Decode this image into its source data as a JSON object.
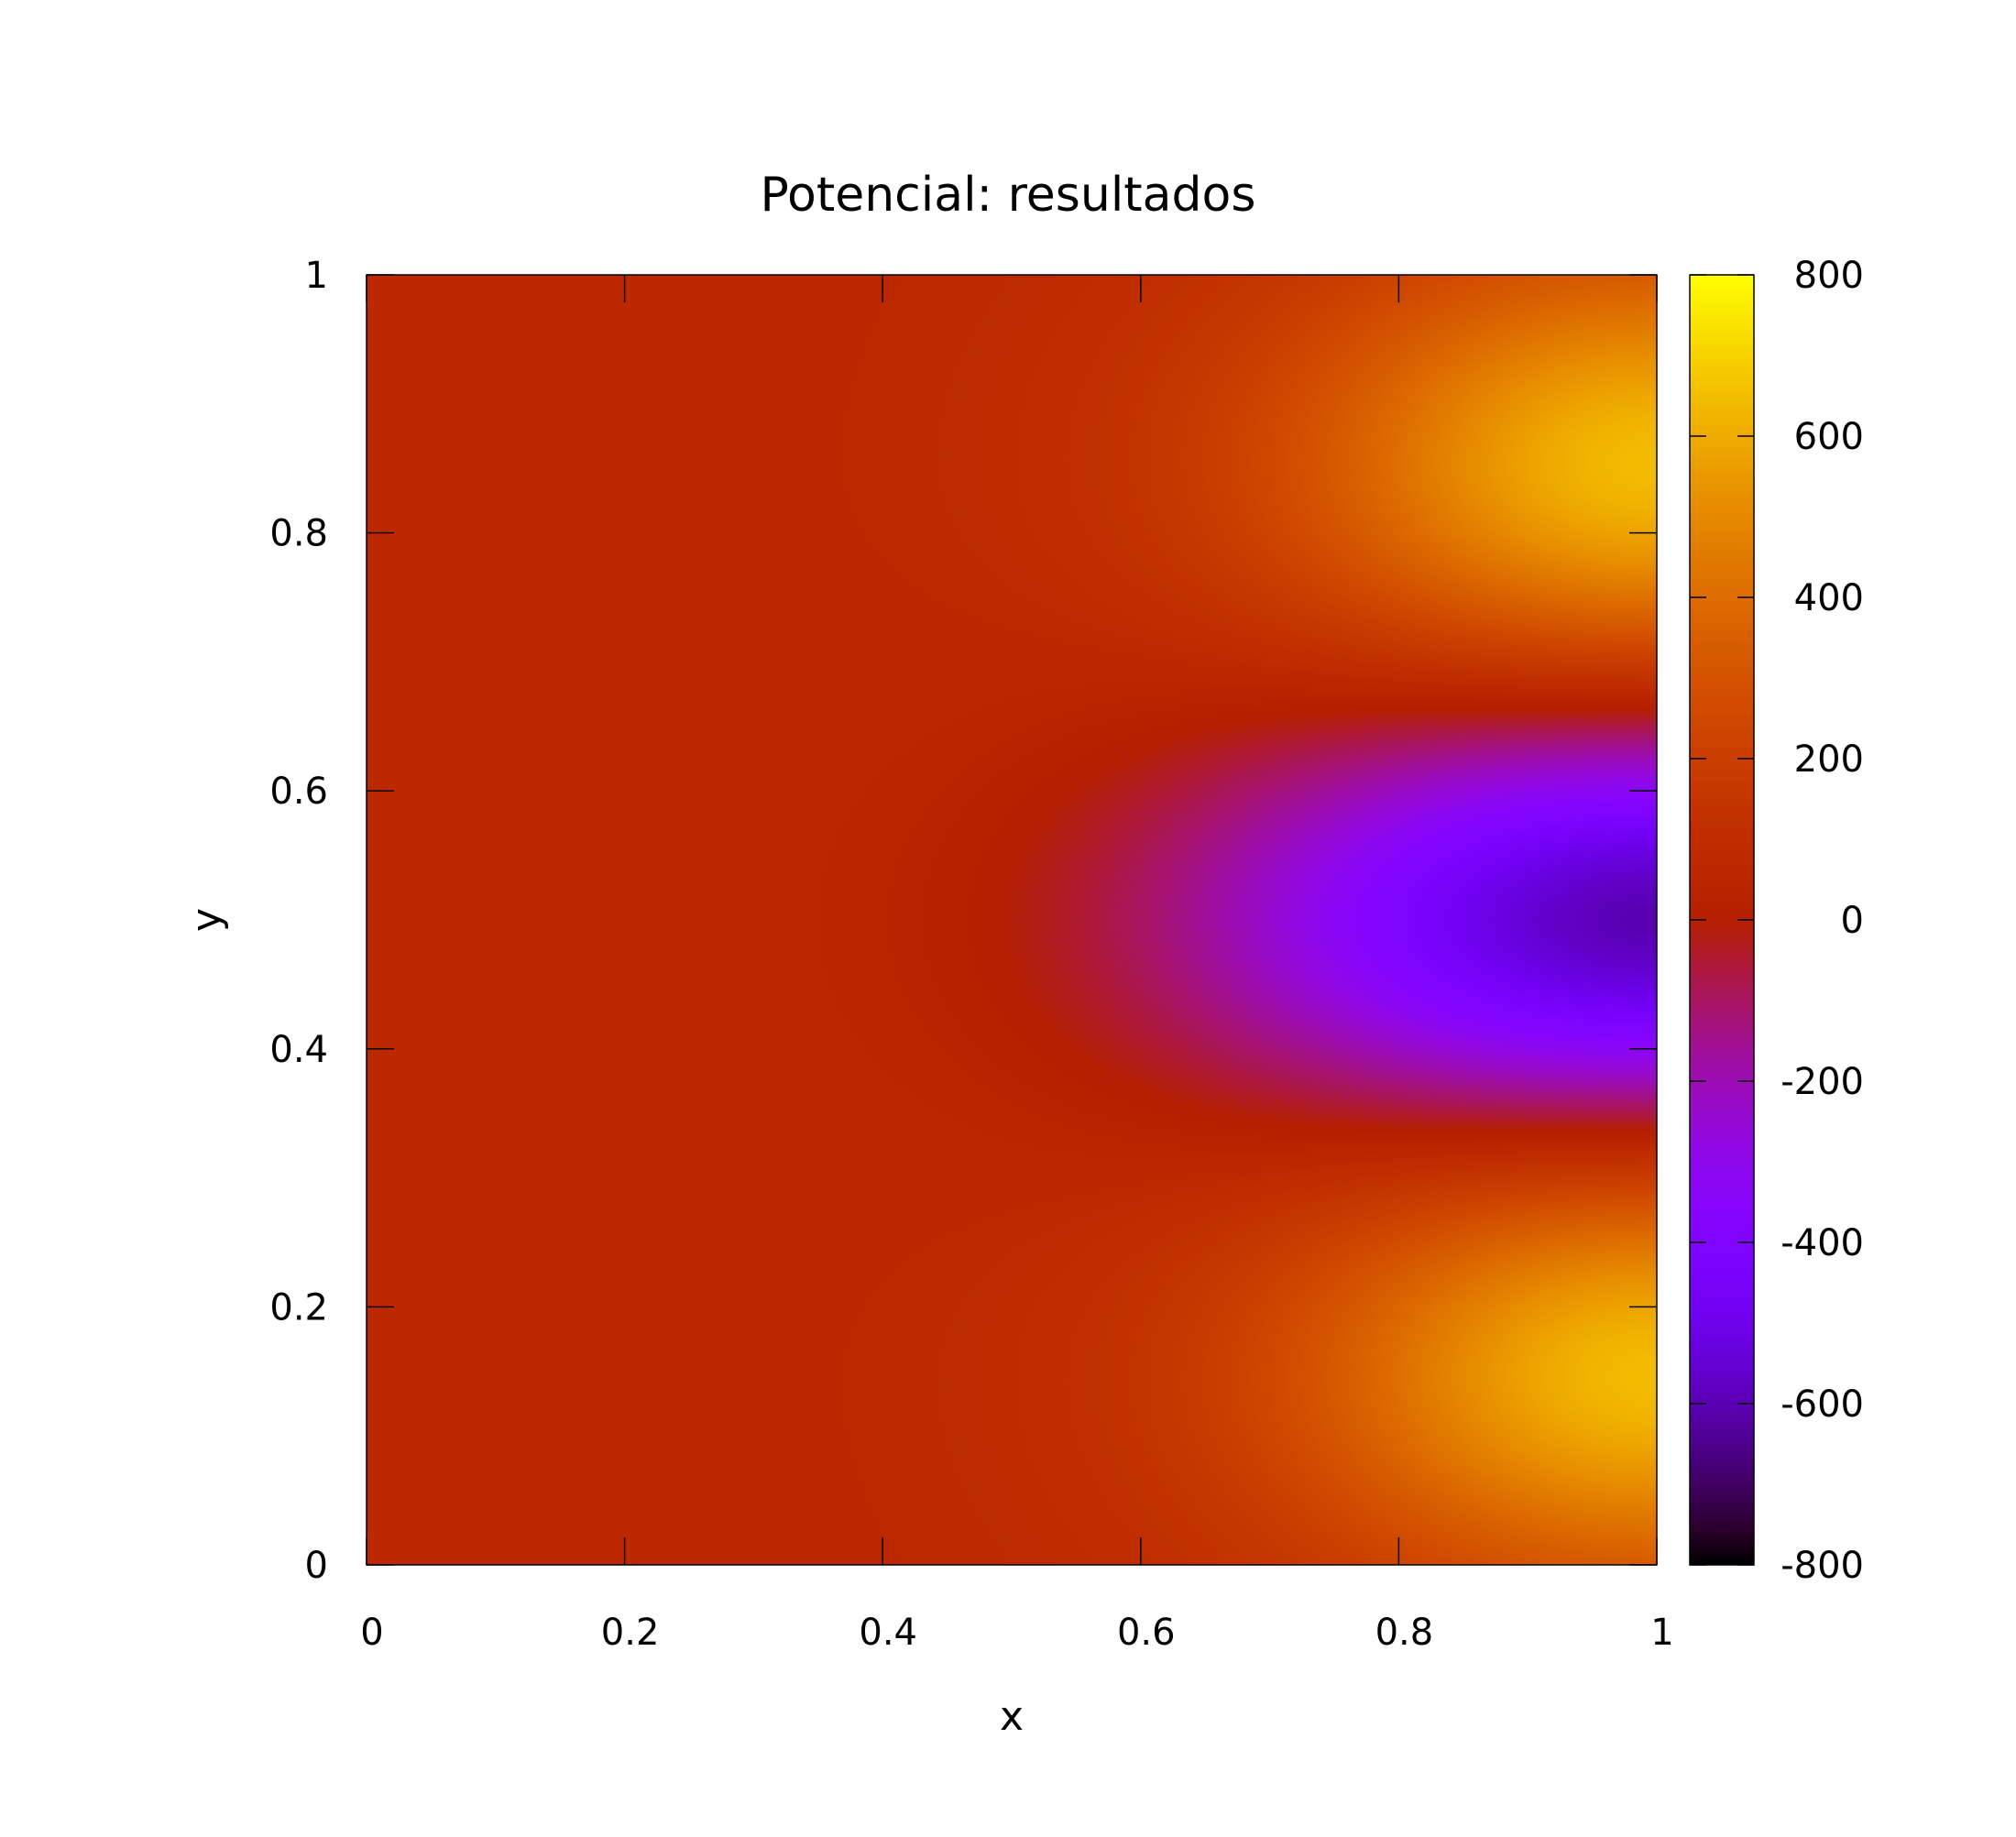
{
  "chart_data": {
    "type": "heatmap",
    "title": "Potencial: resultados",
    "xlabel": "x",
    "ylabel": "y",
    "xlim": [
      0,
      1
    ],
    "ylim": [
      0,
      1
    ],
    "x_ticks": [
      0,
      0.2,
      0.4,
      0.6,
      0.8,
      1
    ],
    "x_tick_labels": [
      "0",
      "0.2",
      "0.4",
      "0.6",
      "0.8",
      "1"
    ],
    "y_ticks": [
      0,
      0.2,
      0.4,
      0.6,
      0.8,
      1
    ],
    "y_tick_labels": [
      "0",
      "0.2",
      "0.4",
      "0.6",
      "0.8",
      "1"
    ],
    "colorbar": {
      "range": [
        -800,
        800
      ],
      "ticks": [
        800,
        600,
        400,
        200,
        0,
        -200,
        -400,
        -600,
        -800
      ],
      "tick_labels": [
        "800",
        "600",
        "400",
        "200",
        "0",
        "-200",
        "-400",
        "-600",
        "-800"
      ],
      "palette": "gnuplot default (black-blue-purple-red-orange-yellow)"
    },
    "field_description_values": {
      "background_value": 70,
      "hot_spots": [
        {
          "x": 1.0,
          "y": 0.85,
          "peak": 650
        },
        {
          "x": 1.0,
          "y": 0.15,
          "peak": 650
        }
      ],
      "cold_spot": {
        "x": 1.0,
        "y": 0.5,
        "peak": -620
      }
    },
    "grid": false,
    "legend": "none"
  }
}
